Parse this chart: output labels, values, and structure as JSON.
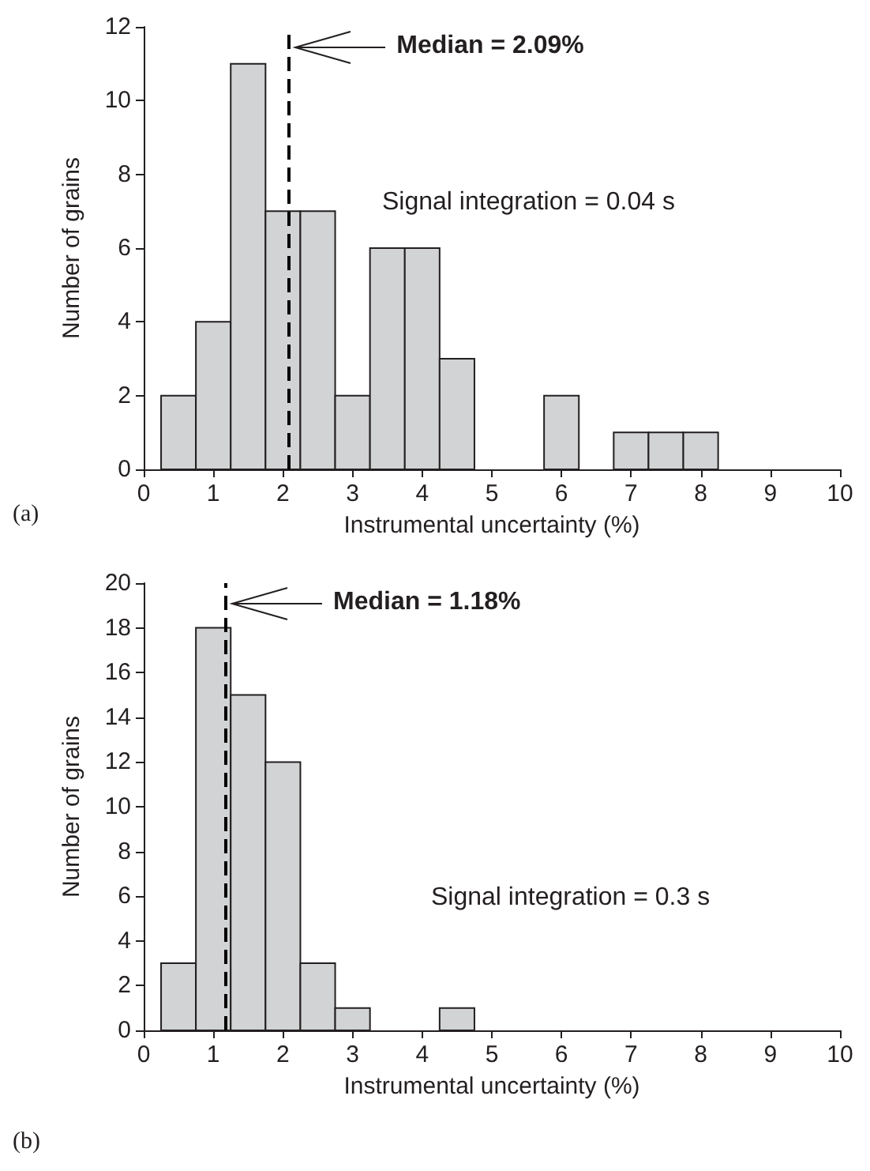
{
  "chart_data": [
    {
      "type": "histogram",
      "xlabel": "Instrumental uncertainty (%)",
      "ylabel": "Number of grains",
      "bins": [
        0.25,
        0.75,
        1.25,
        1.75,
        2.25,
        2.75,
        3.25,
        3.75,
        4.25,
        4.75,
        5.25,
        5.75,
        6.25,
        6.75,
        7.25,
        7.75,
        8.25
      ],
      "values": [
        2,
        4,
        11,
        7,
        7,
        2,
        6,
        6,
        3,
        0,
        0,
        2,
        0,
        1,
        1,
        1
      ],
      "color": "#d1d3d4",
      "xlim": [
        0,
        10
      ],
      "xticks": [
        0,
        1,
        2,
        3,
        4,
        5,
        6,
        7,
        8,
        9,
        10
      ],
      "ylim": [
        0,
        12
      ],
      "yticks": [
        0,
        2,
        4,
        6,
        8,
        10,
        12
      ],
      "grid": false,
      "ref_lines": [
        {
          "axis": "x",
          "value": 2.09,
          "label": "Median = 2.09%",
          "color": "#000000",
          "line_style": "dashed"
        }
      ],
      "annotations": [
        "Signal integration = 0.04 s",
        "(a)"
      ]
    },
    {
      "type": "histogram",
      "xlabel": "Instrumental uncertainty (%)",
      "ylabel": "Number of grains",
      "bins": [
        0.25,
        0.75,
        1.25,
        1.75,
        2.25,
        2.75,
        3.25,
        3.75,
        4.25,
        4.75
      ],
      "values": [
        3,
        18,
        15,
        12,
        3,
        1,
        0,
        0,
        1
      ],
      "color": "#d1d3d4",
      "xlim": [
        0,
        10
      ],
      "xticks": [
        0,
        1,
        2,
        3,
        4,
        5,
        6,
        7,
        8,
        9,
        10
      ],
      "ylim": [
        0,
        20
      ],
      "yticks": [
        0,
        2,
        4,
        6,
        8,
        10,
        12,
        14,
        16,
        18,
        20
      ],
      "grid": false,
      "ref_lines": [
        {
          "axis": "x",
          "value": 1.18,
          "label": "Median = 1.18%",
          "color": "#000000",
          "line_style": "dashed"
        }
      ],
      "annotations": [
        "Signal integration = 0.3 s",
        "(b)"
      ]
    }
  ]
}
